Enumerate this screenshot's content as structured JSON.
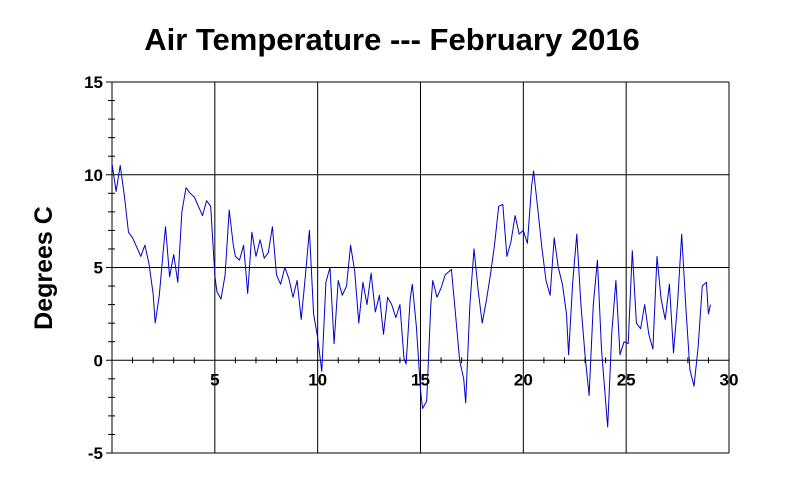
{
  "chart_data": {
    "type": "line",
    "title": "Air Temperature --- February 2016",
    "xlabel": "",
    "ylabel": "Degrees C",
    "xlim": [
      0,
      30
    ],
    "ylim": [
      -5,
      15
    ],
    "x_ticks": [
      5,
      10,
      15,
      20,
      25,
      30
    ],
    "x_tick_labels": [
      "5",
      "10",
      "15",
      "20",
      "25",
      "30"
    ],
    "y_ticks": [
      15,
      10,
      5,
      0,
      -5
    ],
    "y_tick_labels": [
      "15",
      "10",
      "5",
      "0",
      "-5"
    ],
    "grid": true,
    "line_color": "#0000cc",
    "series": [
      {
        "points": [
          [
            0.0,
            10.6
          ],
          [
            0.2,
            9.1
          ],
          [
            0.4,
            10.5
          ],
          [
            0.6,
            8.9
          ],
          [
            0.8,
            6.9
          ],
          [
            1.0,
            6.6
          ],
          [
            1.2,
            6.1
          ],
          [
            1.4,
            5.6
          ],
          [
            1.6,
            6.2
          ],
          [
            1.8,
            5.2
          ],
          [
            2.0,
            3.6
          ],
          [
            2.1,
            2.0
          ],
          [
            2.3,
            3.5
          ],
          [
            2.5,
            6.0
          ],
          [
            2.6,
            7.2
          ],
          [
            2.8,
            4.5
          ],
          [
            3.0,
            5.7
          ],
          [
            3.2,
            4.2
          ],
          [
            3.4,
            8.0
          ],
          [
            3.6,
            9.3
          ],
          [
            3.8,
            9.0
          ],
          [
            4.0,
            8.8
          ],
          [
            4.2,
            8.3
          ],
          [
            4.4,
            7.8
          ],
          [
            4.6,
            8.6
          ],
          [
            4.8,
            8.3
          ],
          [
            5.0,
            4.6
          ],
          [
            5.1,
            3.7
          ],
          [
            5.3,
            3.3
          ],
          [
            5.5,
            4.6
          ],
          [
            5.7,
            8.1
          ],
          [
            5.9,
            6.2
          ],
          [
            6.0,
            5.6
          ],
          [
            6.2,
            5.4
          ],
          [
            6.4,
            6.2
          ],
          [
            6.6,
            3.6
          ],
          [
            6.8,
            6.9
          ],
          [
            7.0,
            5.6
          ],
          [
            7.2,
            6.5
          ],
          [
            7.4,
            5.5
          ],
          [
            7.6,
            5.8
          ],
          [
            7.8,
            7.2
          ],
          [
            8.0,
            4.6
          ],
          [
            8.2,
            4.1
          ],
          [
            8.4,
            5.0
          ],
          [
            8.6,
            4.4
          ],
          [
            8.8,
            3.4
          ],
          [
            9.0,
            4.3
          ],
          [
            9.2,
            2.2
          ],
          [
            9.4,
            4.5
          ],
          [
            9.6,
            7.0
          ],
          [
            9.8,
            2.5
          ],
          [
            10.0,
            1.2
          ],
          [
            10.2,
            -0.6
          ],
          [
            10.4,
            4.2
          ],
          [
            10.6,
            5.0
          ],
          [
            10.8,
            0.9
          ],
          [
            11.0,
            4.3
          ],
          [
            11.2,
            3.5
          ],
          [
            11.4,
            4.0
          ],
          [
            11.6,
            6.2
          ],
          [
            11.8,
            4.8
          ],
          [
            12.0,
            2.0
          ],
          [
            12.2,
            4.2
          ],
          [
            12.4,
            3.0
          ],
          [
            12.6,
            4.7
          ],
          [
            12.8,
            2.6
          ],
          [
            13.0,
            3.5
          ],
          [
            13.2,
            1.4
          ],
          [
            13.4,
            3.4
          ],
          [
            13.6,
            3.0
          ],
          [
            13.8,
            2.3
          ],
          [
            14.0,
            3.0
          ],
          [
            14.2,
            0.1
          ],
          [
            14.3,
            -0.2
          ],
          [
            14.5,
            3.3
          ],
          [
            14.6,
            4.1
          ],
          [
            14.8,
            1.8
          ],
          [
            15.0,
            -1.6
          ],
          [
            15.1,
            -2.6
          ],
          [
            15.3,
            -2.2
          ],
          [
            15.5,
            3.0
          ],
          [
            15.6,
            4.3
          ],
          [
            15.8,
            3.4
          ],
          [
            16.0,
            3.9
          ],
          [
            16.2,
            4.6
          ],
          [
            16.5,
            4.9
          ],
          [
            16.7,
            2.5
          ],
          [
            16.9,
            0.0
          ],
          [
            17.1,
            -1.0
          ],
          [
            17.2,
            -2.3
          ],
          [
            17.4,
            3.0
          ],
          [
            17.6,
            6.0
          ],
          [
            17.8,
            3.8
          ],
          [
            18.0,
            2.0
          ],
          [
            18.2,
            3.2
          ],
          [
            18.4,
            4.6
          ],
          [
            18.6,
            6.2
          ],
          [
            18.8,
            8.3
          ],
          [
            19.0,
            8.4
          ],
          [
            19.2,
            5.6
          ],
          [
            19.4,
            6.4
          ],
          [
            19.6,
            7.8
          ],
          [
            19.8,
            6.8
          ],
          [
            20.0,
            7.0
          ],
          [
            20.2,
            6.3
          ],
          [
            20.4,
            9.4
          ],
          [
            20.5,
            10.2
          ],
          [
            20.7,
            8.2
          ],
          [
            20.9,
            6.1
          ],
          [
            21.1,
            4.3
          ],
          [
            21.3,
            3.5
          ],
          [
            21.5,
            6.6
          ],
          [
            21.7,
            5.0
          ],
          [
            21.9,
            4.1
          ],
          [
            22.1,
            2.5
          ],
          [
            22.2,
            0.3
          ],
          [
            22.4,
            4.2
          ],
          [
            22.6,
            6.8
          ],
          [
            22.8,
            3.0
          ],
          [
            23.0,
            0.3
          ],
          [
            23.2,
            -1.9
          ],
          [
            23.4,
            3.0
          ],
          [
            23.6,
            5.4
          ],
          [
            23.8,
            0.6
          ],
          [
            24.0,
            -2.2
          ],
          [
            24.1,
            -3.6
          ],
          [
            24.3,
            1.5
          ],
          [
            24.5,
            4.3
          ],
          [
            24.7,
            0.3
          ],
          [
            24.9,
            1.0
          ],
          [
            25.1,
            0.9
          ],
          [
            25.3,
            5.9
          ],
          [
            25.5,
            2.0
          ],
          [
            25.7,
            1.7
          ],
          [
            25.9,
            3.0
          ],
          [
            26.1,
            1.4
          ],
          [
            26.3,
            0.6
          ],
          [
            26.5,
            5.6
          ],
          [
            26.7,
            3.3
          ],
          [
            26.9,
            2.2
          ],
          [
            27.1,
            4.1
          ],
          [
            27.3,
            0.4
          ],
          [
            27.5,
            3.1
          ],
          [
            27.7,
            6.8
          ],
          [
            27.9,
            2.9
          ],
          [
            28.1,
            -0.5
          ],
          [
            28.3,
            -1.4
          ],
          [
            28.5,
            0.7
          ],
          [
            28.7,
            4.0
          ],
          [
            28.9,
            4.2
          ],
          [
            29.0,
            2.5
          ],
          [
            29.1,
            3.0
          ]
        ]
      }
    ]
  }
}
